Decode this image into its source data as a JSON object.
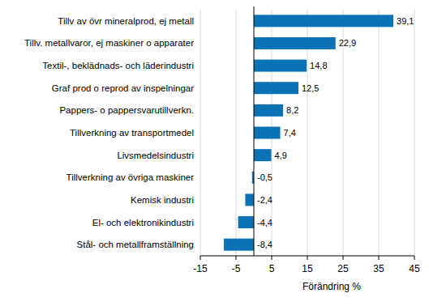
{
  "chart_data": {
    "type": "bar",
    "orientation": "horizontal",
    "categories": [
      "Tillv av övr mineralprod, ej metall",
      "Tillv. metallvaror, ej maskiner o apparater",
      "Textil-, beklädnads- och läderindustri",
      "Graf prod o reprod av inspelningar",
      "Pappers- o pappersvarutillverkn.",
      "Tillverkning av transportmedel",
      "Livsmedelsindustri",
      "Tillverkning av övriga maskiner",
      "Kemisk industri",
      "El- och elektronikindustri",
      "Stål- och metallframställning"
    ],
    "values": [
      39.1,
      22.9,
      14.8,
      12.5,
      8.2,
      7.4,
      4.9,
      -0.5,
      -2.4,
      -4.4,
      -8.4
    ],
    "value_labels": [
      "39,1",
      "22,9",
      "14,8",
      "12,5",
      "8,2",
      "7,4",
      "4,9",
      "-0,5",
      "-2,4",
      "-4,4",
      "-8,4"
    ],
    "data_labels": true,
    "color": "#0b72b5",
    "xlabel": "Förändring %",
    "xlim": [
      -15,
      45
    ],
    "xticks": [
      -15,
      -5,
      5,
      15,
      25,
      35,
      45
    ],
    "grid": true
  }
}
